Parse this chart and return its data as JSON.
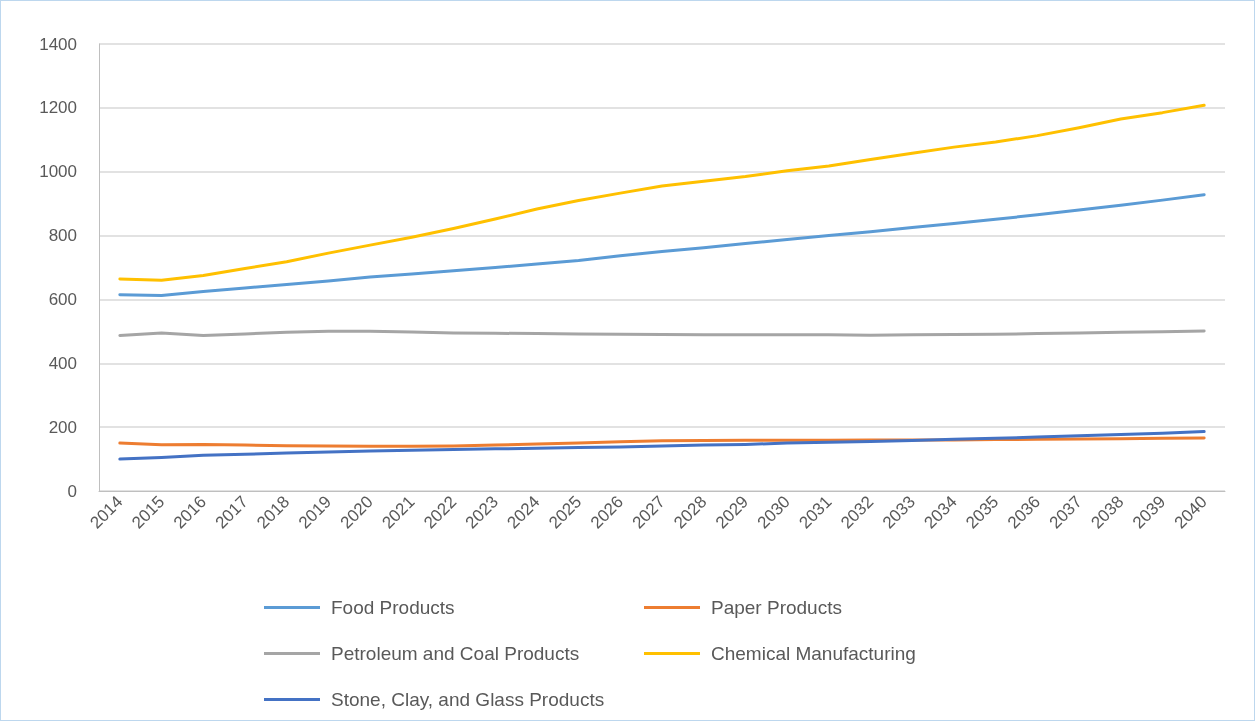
{
  "chart_data": {
    "type": "line",
    "categories": [
      "2014",
      "2015",
      "2016",
      "2017",
      "2018",
      "2019",
      "2020",
      "2021",
      "2022",
      "2023",
      "2024",
      "2025",
      "2026",
      "2027",
      "2028",
      "2029",
      "2030",
      "2031",
      "2032",
      "2033",
      "2034",
      "2035",
      "2036",
      "2037",
      "2038",
      "2039",
      "2040"
    ],
    "series": [
      {
        "name": "Food Products",
        "color": "#5b9bd5",
        "values": [
          615,
          612,
          625,
          636,
          647,
          658,
          670,
          680,
          690,
          700,
          711,
          722,
          737,
          750,
          762,
          775,
          788,
          800,
          812,
          825,
          838,
          851,
          865,
          880,
          895,
          911,
          928
        ]
      },
      {
        "name": "Paper Products",
        "color": "#ed7d31",
        "values": [
          150,
          145,
          146,
          144,
          142,
          141,
          140,
          140,
          141,
          144,
          147,
          150,
          154,
          157,
          158,
          159,
          159,
          159,
          160,
          160,
          160,
          161,
          162,
          163,
          164,
          165,
          166
        ]
      },
      {
        "name": "Petroleum and Coal Products",
        "color": "#a5a5a5",
        "values": [
          487,
          495,
          487,
          492,
          497,
          500,
          500,
          498,
          495,
          494,
          493,
          492,
          491,
          490,
          489,
          489,
          489,
          489,
          488,
          489,
          490,
          491,
          493,
          495,
          497,
          499,
          501
        ]
      },
      {
        "name": "Chemical Manufacturing",
        "color": "#ffc000",
        "values": [
          664,
          660,
          675,
          697,
          718,
          745,
          770,
          795,
          822,
          852,
          883,
          910,
          933,
          955,
          970,
          985,
          1003,
          1018,
          1038,
          1058,
          1077,
          1093,
          1113,
          1138,
          1165,
          1185,
          1208
        ]
      },
      {
        "name": "Stone, Clay, and Glass Products",
        "color": "#4472c4",
        "values": [
          100,
          105,
          112,
          115,
          119,
          122,
          125,
          128,
          130,
          132,
          134,
          136,
          138,
          141,
          144,
          146,
          150,
          153,
          155,
          158,
          162,
          165,
          169,
          173,
          177,
          181,
          186
        ]
      }
    ],
    "ylim": [
      0,
      1400
    ],
    "yticks": [
      0,
      200,
      400,
      600,
      800,
      1000,
      1200,
      1400
    ],
    "grid": "y",
    "legend": "bottom",
    "marker": "none",
    "line_style": "solid"
  }
}
